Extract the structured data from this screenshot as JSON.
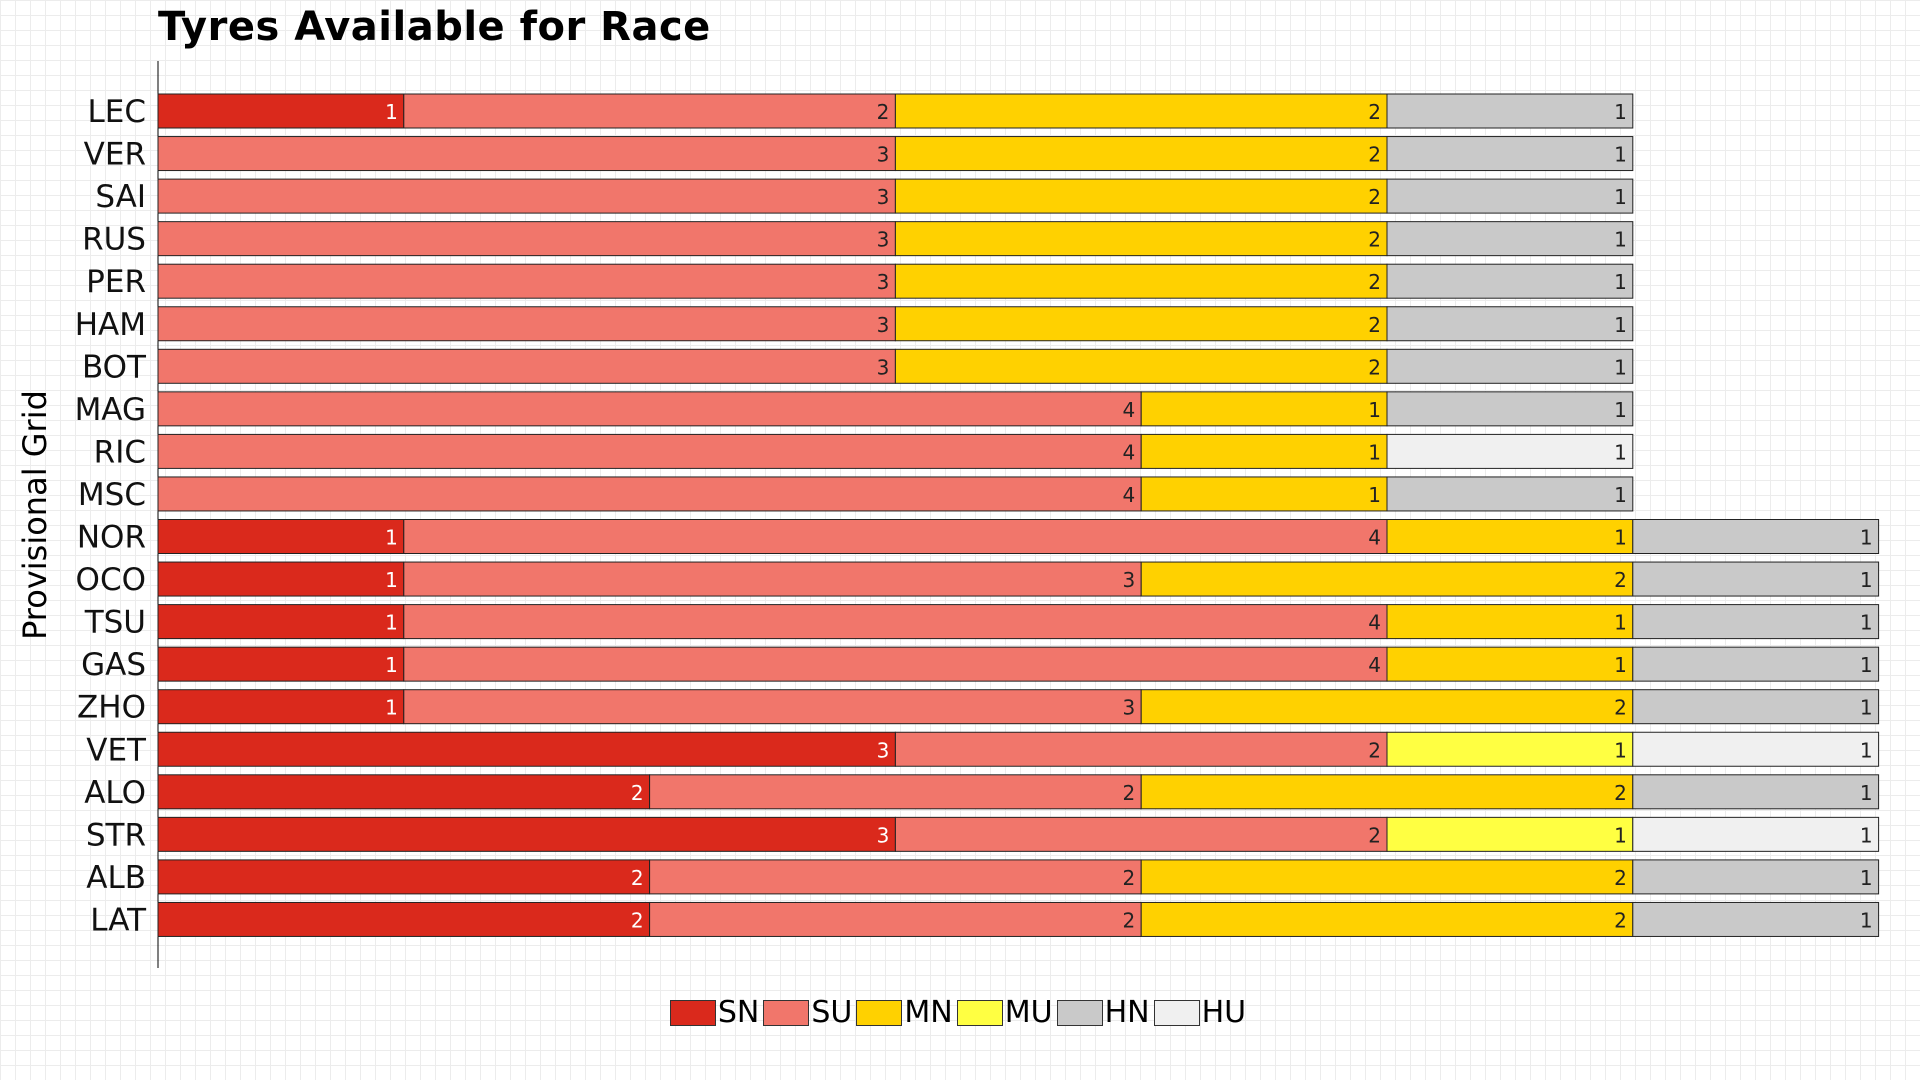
{
  "chart_data": {
    "type": "bar",
    "orientation": "horizontal",
    "stacked": true,
    "title": "Tyres Available for Race",
    "ylabel": "Provisional Grid",
    "xlabel": "",
    "legend_position": "bottom",
    "compounds": [
      "SN",
      "SU",
      "MN",
      "MU",
      "HN",
      "HU"
    ],
    "colors": {
      "SN": "#da291c",
      "SU": "#f1766b",
      "MN": "#ffd100",
      "MU": "#ffff42",
      "HN": "#c9c9c9",
      "HU": "#f0f0f0"
    },
    "rows": [
      {
        "driver": "LEC",
        "segments": [
          [
            "SN",
            1
          ],
          [
            "SU",
            2
          ],
          [
            "MN",
            2
          ],
          [
            "HN",
            1
          ]
        ]
      },
      {
        "driver": "VER",
        "segments": [
          [
            "SU",
            3
          ],
          [
            "MN",
            2
          ],
          [
            "HN",
            1
          ]
        ]
      },
      {
        "driver": "SAI",
        "segments": [
          [
            "SU",
            3
          ],
          [
            "MN",
            2
          ],
          [
            "HN",
            1
          ]
        ]
      },
      {
        "driver": "RUS",
        "segments": [
          [
            "SU",
            3
          ],
          [
            "MN",
            2
          ],
          [
            "HN",
            1
          ]
        ]
      },
      {
        "driver": "PER",
        "segments": [
          [
            "SU",
            3
          ],
          [
            "MN",
            2
          ],
          [
            "HN",
            1
          ]
        ]
      },
      {
        "driver": "HAM",
        "segments": [
          [
            "SU",
            3
          ],
          [
            "MN",
            2
          ],
          [
            "HN",
            1
          ]
        ]
      },
      {
        "driver": "BOT",
        "segments": [
          [
            "SU",
            3
          ],
          [
            "MN",
            2
          ],
          [
            "HN",
            1
          ]
        ]
      },
      {
        "driver": "MAG",
        "segments": [
          [
            "SU",
            4
          ],
          [
            "MN",
            1
          ],
          [
            "HN",
            1
          ]
        ]
      },
      {
        "driver": "RIC",
        "segments": [
          [
            "SU",
            4
          ],
          [
            "MN",
            1
          ],
          [
            "HU",
            1
          ]
        ]
      },
      {
        "driver": "MSC",
        "segments": [
          [
            "SU",
            4
          ],
          [
            "MN",
            1
          ],
          [
            "HN",
            1
          ]
        ]
      },
      {
        "driver": "NOR",
        "segments": [
          [
            "SN",
            1
          ],
          [
            "SU",
            4
          ],
          [
            "MN",
            1
          ],
          [
            "HN",
            1
          ]
        ]
      },
      {
        "driver": "OCO",
        "segments": [
          [
            "SN",
            1
          ],
          [
            "SU",
            3
          ],
          [
            "MN",
            2
          ],
          [
            "HN",
            1
          ]
        ]
      },
      {
        "driver": "TSU",
        "segments": [
          [
            "SN",
            1
          ],
          [
            "SU",
            4
          ],
          [
            "MN",
            1
          ],
          [
            "HN",
            1
          ]
        ]
      },
      {
        "driver": "GAS",
        "segments": [
          [
            "SN",
            1
          ],
          [
            "SU",
            4
          ],
          [
            "MN",
            1
          ],
          [
            "HN",
            1
          ]
        ]
      },
      {
        "driver": "ZHO",
        "segments": [
          [
            "SN",
            1
          ],
          [
            "SU",
            3
          ],
          [
            "MN",
            2
          ],
          [
            "HN",
            1
          ]
        ]
      },
      {
        "driver": "VET",
        "segments": [
          [
            "SN",
            3
          ],
          [
            "SU",
            2
          ],
          [
            "MU",
            1
          ],
          [
            "HU",
            1
          ]
        ]
      },
      {
        "driver": "ALO",
        "segments": [
          [
            "SN",
            2
          ],
          [
            "SU",
            2
          ],
          [
            "MN",
            2
          ],
          [
            "HN",
            1
          ]
        ]
      },
      {
        "driver": "STR",
        "segments": [
          [
            "SN",
            3
          ],
          [
            "SU",
            2
          ],
          [
            "MU",
            1
          ],
          [
            "HU",
            1
          ]
        ]
      },
      {
        "driver": "ALB",
        "segments": [
          [
            "SN",
            2
          ],
          [
            "SU",
            2
          ],
          [
            "MN",
            2
          ],
          [
            "HN",
            1
          ]
        ]
      },
      {
        "driver": "LAT",
        "segments": [
          [
            "SN",
            2
          ],
          [
            "SU",
            2
          ],
          [
            "MN",
            2
          ],
          [
            "HN",
            1
          ]
        ]
      }
    ]
  }
}
